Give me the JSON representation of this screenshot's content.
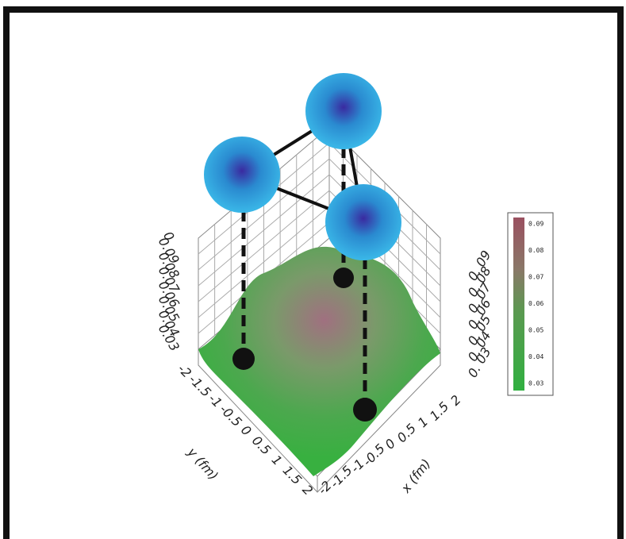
{
  "z_axis_left": {
    "ticks": [
      "0",
      "0.09",
      "0.08",
      "0.07",
      "0.06",
      "0.05",
      "0.04",
      "0.03"
    ]
  },
  "z_axis_right": {
    "ticks": [
      "0. 09",
      "0. 08",
      "0. 07",
      "0. 06",
      "0. 05",
      "0. 04",
      "0. 03"
    ]
  },
  "y_axis": {
    "label": "y (fm)",
    "ticks": [
      "-2",
      "-1.5",
      "-1",
      "-0.5",
      "0",
      "0.5",
      "1",
      "1.5",
      "2"
    ]
  },
  "x_axis": {
    "label": "x (fm)",
    "ticks": [
      "2",
      "1.5",
      "1",
      "0.5",
      "0",
      "-0.5",
      "-1",
      "-1.5",
      "-2"
    ]
  },
  "colorbar": {
    "ticks": [
      "0.09",
      "0.08",
      "0.07",
      "0.06",
      "0.05",
      "0.04",
      "0.03"
    ]
  }
}
